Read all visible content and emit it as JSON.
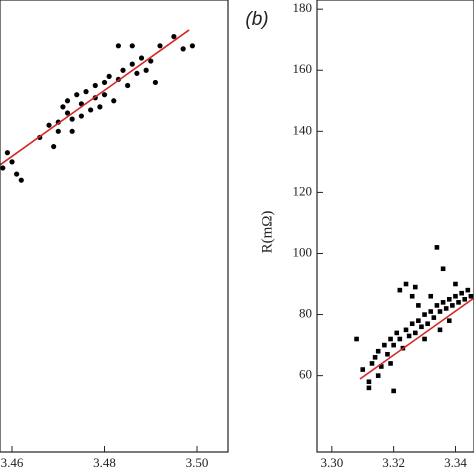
{
  "chart_data": [
    {
      "type": "scatter",
      "marker": "circle",
      "color": "#000000",
      "xlim": [
        3.4574,
        3.5067
      ],
      "ylim": [
        35,
        183
      ],
      "xticks": [
        3.46,
        3.48,
        3.5
      ],
      "xtick_labels": [
        "3.46",
        "3.48",
        "3.50"
      ],
      "x": [
        3.458,
        3.459,
        3.461,
        3.462,
        3.46,
        3.466,
        3.468,
        3.469,
        3.47,
        3.471,
        3.472,
        3.472,
        3.473,
        3.474,
        3.475,
        3.475,
        3.476,
        3.477,
        3.478,
        3.478,
        3.479,
        3.48,
        3.48,
        3.481,
        3.482,
        3.483,
        3.484,
        3.485,
        3.486,
        3.487,
        3.488,
        3.489,
        3.49,
        3.491,
        3.492,
        3.495,
        3.497,
        3.499,
        3.47,
        3.473,
        3.483,
        3.486
      ],
      "y": [
        128,
        133,
        126,
        124,
        130,
        138,
        142,
        135,
        143,
        148,
        146,
        150,
        144,
        152,
        149,
        145,
        153,
        147,
        155,
        151,
        148,
        156,
        152,
        158,
        150,
        157,
        160,
        155,
        162,
        159,
        164,
        160,
        163,
        156,
        168,
        171,
        167,
        168,
        140,
        140,
        168,
        168
      ],
      "fit_line": {
        "color": "#d62728",
        "x": [
          3.4574,
          3.4983
        ],
        "y": [
          129,
          173.2
        ]
      }
    },
    {
      "type": "scatter",
      "marker": "square",
      "color": "#000000",
      "label": "(b)",
      "y_label": "R(mΩ)",
      "xlim": [
        3.2952,
        3.346
      ],
      "ylim": [
        35,
        183
      ],
      "xticks": [
        3.3,
        3.32,
        3.34
      ],
      "xtick_labels": [
        "3.30",
        "3.32",
        "3.34"
      ],
      "yticks": [
        60,
        80,
        100,
        120,
        140,
        160,
        180
      ],
      "x": [
        3.308,
        3.31,
        3.312,
        3.313,
        3.314,
        3.315,
        3.316,
        3.317,
        3.318,
        3.319,
        3.32,
        3.321,
        3.322,
        3.323,
        3.324,
        3.325,
        3.326,
        3.327,
        3.328,
        3.329,
        3.33,
        3.331,
        3.332,
        3.333,
        3.334,
        3.335,
        3.336,
        3.337,
        3.338,
        3.339,
        3.34,
        3.341,
        3.342,
        3.343,
        3.344,
        3.345,
        3.322,
        3.324,
        3.326,
        3.327,
        3.334,
        3.336,
        3.312,
        3.315,
        3.32,
        3.319,
        3.33,
        3.335,
        3.338,
        3.328,
        3.332,
        3.34
      ],
      "y": [
        72,
        62,
        58,
        64,
        66,
        68,
        63,
        70,
        67,
        72,
        70,
        74,
        72,
        69,
        75,
        73,
        77,
        74,
        78,
        76,
        80,
        77,
        81,
        79,
        83,
        81,
        84,
        82,
        85,
        83,
        86,
        84,
        87,
        85,
        88,
        86,
        88,
        90,
        86,
        89,
        102,
        95,
        56,
        60,
        55,
        64,
        72,
        75,
        78,
        83,
        86,
        90
      ],
      "fit_line": {
        "color": "#d62728",
        "x": [
          3.3091,
          3.346
        ],
        "y": [
          58.9,
          85.4
        ]
      }
    }
  ]
}
